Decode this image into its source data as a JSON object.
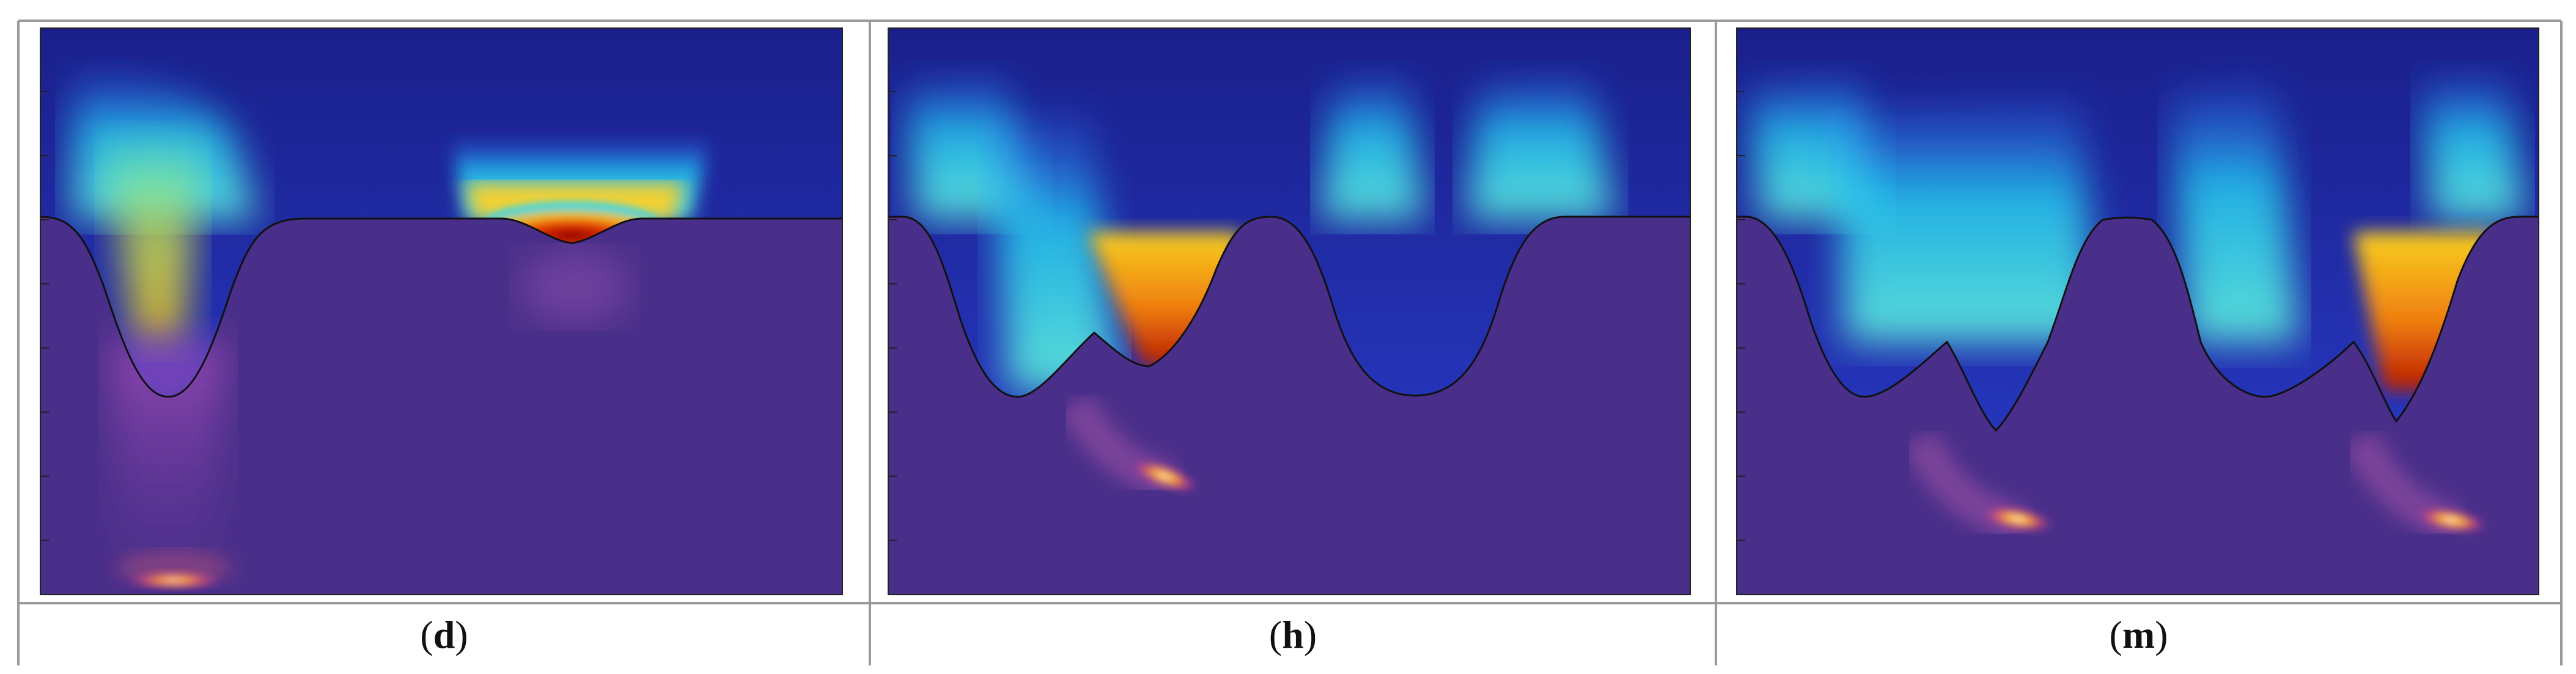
{
  "figure": {
    "panels": [
      {
        "label": "d",
        "caption_open": "(",
        "caption_close": ")"
      },
      {
        "label": "h",
        "caption_open": "(",
        "caption_close": ")"
      },
      {
        "label": "m",
        "caption_open": "(",
        "caption_close": ")"
      }
    ],
    "colors": {
      "background_top": "#1a1f8a",
      "solid_region": "#4a2f8a",
      "cool": "#22d3f0",
      "warm": "#f7c815",
      "hot": "#d42a00",
      "grid_line": "#9a9a9a"
    }
  }
}
